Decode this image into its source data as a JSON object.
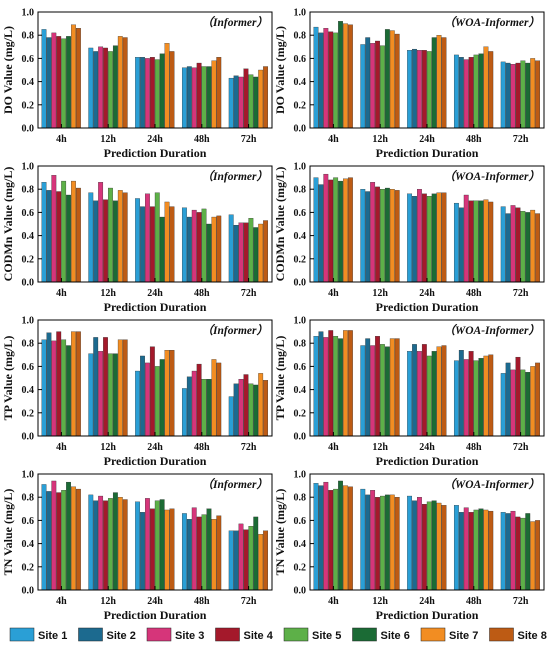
{
  "legend": {
    "sites": [
      "Site 1",
      "Site 2",
      "Site 3",
      "Site 4",
      "Site 5",
      "Site 6",
      "Site 7",
      "Site 8"
    ],
    "colors": [
      "#2a9fd6",
      "#1c6a8f",
      "#d6357a",
      "#a4192b",
      "#5db048",
      "#1b6b35",
      "#f28d22",
      "#bd5b14"
    ]
  },
  "chart_data": [
    {
      "type": "bar",
      "title": "（Informer）",
      "xlabel": "Prediction Duration",
      "ylabel": "DO Value (mg/L)",
      "categories": [
        "4h",
        "12h",
        "24h",
        "48h",
        "72h"
      ],
      "ylim": [
        0,
        1.0
      ],
      "yticks": [
        "0.0",
        "0.2",
        "0.4",
        "0.6",
        "0.8",
        "1.0"
      ],
      "series": [
        {
          "name": "Site 1",
          "values": [
            0.85,
            0.69,
            0.61,
            0.52,
            0.43
          ]
        },
        {
          "name": "Site 2",
          "values": [
            0.78,
            0.66,
            0.61,
            0.53,
            0.45
          ]
        },
        {
          "name": "Site 3",
          "values": [
            0.82,
            0.7,
            0.6,
            0.52,
            0.44
          ]
        },
        {
          "name": "Site 4",
          "values": [
            0.79,
            0.69,
            0.61,
            0.56,
            0.51
          ]
        },
        {
          "name": "Site 5",
          "values": [
            0.77,
            0.66,
            0.59,
            0.53,
            0.46
          ]
        },
        {
          "name": "Site 6",
          "values": [
            0.79,
            0.71,
            0.64,
            0.53,
            0.44
          ]
        },
        {
          "name": "Site 7",
          "values": [
            0.89,
            0.79,
            0.73,
            0.58,
            0.5
          ]
        },
        {
          "name": "Site 8",
          "values": [
            0.86,
            0.78,
            0.66,
            0.61,
            0.53
          ]
        }
      ]
    },
    {
      "type": "bar",
      "title": "（WOA-Informer）",
      "xlabel": "Prediction Duration",
      "ylabel": "DO Value (mg/L)",
      "categories": [
        "4h",
        "12h",
        "24h",
        "48h",
        "72h"
      ],
      "ylim": [
        0,
        1.0
      ],
      "yticks": [
        "0.0",
        "0.2",
        "0.4",
        "0.6",
        "0.8",
        "1.0"
      ],
      "series": [
        {
          "name": "Site 1",
          "values": [
            0.87,
            0.72,
            0.67,
            0.63,
            0.57
          ]
        },
        {
          "name": "Site 2",
          "values": [
            0.82,
            0.78,
            0.68,
            0.61,
            0.56
          ]
        },
        {
          "name": "Site 3",
          "values": [
            0.86,
            0.73,
            0.67,
            0.59,
            0.55
          ]
        },
        {
          "name": "Site 4",
          "values": [
            0.83,
            0.75,
            0.67,
            0.61,
            0.56
          ]
        },
        {
          "name": "Site 5",
          "values": [
            0.82,
            0.71,
            0.66,
            0.63,
            0.58
          ]
        },
        {
          "name": "Site 6",
          "values": [
            0.92,
            0.85,
            0.78,
            0.64,
            0.56
          ]
        },
        {
          "name": "Site 7",
          "values": [
            0.9,
            0.84,
            0.8,
            0.7,
            0.6
          ]
        },
        {
          "name": "Site 8",
          "values": [
            0.89,
            0.81,
            0.78,
            0.66,
            0.58
          ]
        }
      ]
    },
    {
      "type": "bar",
      "title": "（Informer）",
      "xlabel": "Prediction Duration",
      "ylabel": "CODMn Value (mg/L)",
      "categories": [
        "4h",
        "12h",
        "24h",
        "48h",
        "72h"
      ],
      "ylim": [
        0,
        1.0
      ],
      "yticks": [
        "0.0",
        "0.2",
        "0.4",
        "0.6",
        "0.8",
        "1.0"
      ],
      "series": [
        {
          "name": "Site 1",
          "values": [
            0.86,
            0.77,
            0.72,
            0.64,
            0.58
          ]
        },
        {
          "name": "Site 2",
          "values": [
            0.79,
            0.7,
            0.65,
            0.56,
            0.49
          ]
        },
        {
          "name": "Site 3",
          "values": [
            0.92,
            0.86,
            0.76,
            0.62,
            0.51
          ]
        },
        {
          "name": "Site 4",
          "values": [
            0.78,
            0.71,
            0.65,
            0.6,
            0.51
          ]
        },
        {
          "name": "Site 5",
          "values": [
            0.87,
            0.81,
            0.77,
            0.63,
            0.55
          ]
        },
        {
          "name": "Site 6",
          "values": [
            0.75,
            0.7,
            0.56,
            0.5,
            0.47
          ]
        },
        {
          "name": "Site 7",
          "values": [
            0.87,
            0.79,
            0.69,
            0.56,
            0.5
          ]
        },
        {
          "name": "Site 8",
          "values": [
            0.81,
            0.77,
            0.65,
            0.57,
            0.53
          ]
        }
      ]
    },
    {
      "type": "bar",
      "title": "（WOA-Informer）",
      "xlabel": "Prediction Duration",
      "ylabel": "CODMn Value (mg/L)",
      "categories": [
        "4h",
        "12h",
        "24h",
        "48h",
        "72h"
      ],
      "ylim": [
        0,
        1.0
      ],
      "yticks": [
        "0.0",
        "0.2",
        "0.4",
        "0.6",
        "0.8",
        "1.0"
      ],
      "series": [
        {
          "name": "Site 1",
          "values": [
            0.9,
            0.8,
            0.76,
            0.68,
            0.65
          ]
        },
        {
          "name": "Site 2",
          "values": [
            0.84,
            0.78,
            0.74,
            0.64,
            0.59
          ]
        },
        {
          "name": "Site 3",
          "values": [
            0.93,
            0.86,
            0.8,
            0.75,
            0.66
          ]
        },
        {
          "name": "Site 4",
          "values": [
            0.88,
            0.82,
            0.76,
            0.7,
            0.64
          ]
        },
        {
          "name": "Site 5",
          "values": [
            0.9,
            0.8,
            0.74,
            0.7,
            0.61
          ]
        },
        {
          "name": "Site 6",
          "values": [
            0.87,
            0.81,
            0.76,
            0.7,
            0.6
          ]
        },
        {
          "name": "Site 7",
          "values": [
            0.89,
            0.8,
            0.77,
            0.71,
            0.62
          ]
        },
        {
          "name": "Site 8",
          "values": [
            0.9,
            0.79,
            0.77,
            0.69,
            0.59
          ]
        }
      ]
    },
    {
      "type": "bar",
      "title": "（Informer）",
      "xlabel": "Prediction Duration",
      "ylabel": "TP Value (mg/L)",
      "categories": [
        "4h",
        "12h",
        "24h",
        "48h",
        "72h"
      ],
      "ylim": [
        0,
        1.0
      ],
      "yticks": [
        "0.0",
        "0.2",
        "0.4",
        "0.6",
        "0.8",
        "1.0"
      ],
      "series": [
        {
          "name": "Site 1",
          "values": [
            0.83,
            0.71,
            0.56,
            0.41,
            0.34
          ]
        },
        {
          "name": "Site 2",
          "values": [
            0.89,
            0.85,
            0.69,
            0.51,
            0.45
          ]
        },
        {
          "name": "Site 3",
          "values": [
            0.82,
            0.73,
            0.63,
            0.56,
            0.49
          ]
        },
        {
          "name": "Site 4",
          "values": [
            0.9,
            0.85,
            0.77,
            0.62,
            0.53
          ]
        },
        {
          "name": "Site 5",
          "values": [
            0.83,
            0.71,
            0.6,
            0.49,
            0.45
          ]
        },
        {
          "name": "Site 6",
          "values": [
            0.78,
            0.71,
            0.66,
            0.49,
            0.44
          ]
        },
        {
          "name": "Site 7",
          "values": [
            0.9,
            0.83,
            0.74,
            0.66,
            0.54
          ]
        },
        {
          "name": "Site 8",
          "values": [
            0.9,
            0.83,
            0.74,
            0.63,
            0.48
          ]
        }
      ]
    },
    {
      "type": "bar",
      "title": "（WOA-Informer）",
      "xlabel": "Prediction Duration",
      "ylabel": "TP Value (mg/L)",
      "categories": [
        "4h",
        "12h",
        "24h",
        "48h",
        "72h"
      ],
      "ylim": [
        0,
        1.0
      ],
      "yticks": [
        "0.0",
        "0.2",
        "0.4",
        "0.6",
        "0.8",
        "1.0"
      ],
      "series": [
        {
          "name": "Site 1",
          "values": [
            0.86,
            0.78,
            0.73,
            0.65,
            0.54
          ]
        },
        {
          "name": "Site 2",
          "values": [
            0.9,
            0.84,
            0.79,
            0.74,
            0.63
          ]
        },
        {
          "name": "Site 3",
          "values": [
            0.85,
            0.78,
            0.73,
            0.66,
            0.57
          ]
        },
        {
          "name": "Site 4",
          "values": [
            0.91,
            0.86,
            0.79,
            0.73,
            0.68
          ]
        },
        {
          "name": "Site 5",
          "values": [
            0.86,
            0.79,
            0.69,
            0.65,
            0.57
          ]
        },
        {
          "name": "Site 6",
          "values": [
            0.84,
            0.77,
            0.73,
            0.67,
            0.55
          ]
        },
        {
          "name": "Site 7",
          "values": [
            0.91,
            0.84,
            0.77,
            0.69,
            0.6
          ]
        },
        {
          "name": "Site 8",
          "values": [
            0.91,
            0.84,
            0.78,
            0.7,
            0.63
          ]
        }
      ]
    },
    {
      "type": "bar",
      "title": "（Informer）",
      "xlabel": "Prediction Duration",
      "ylabel": "TN Value (mg/L)",
      "categories": [
        "4h",
        "12h",
        "24h",
        "48h",
        "72h"
      ],
      "ylim": [
        0,
        1.0
      ],
      "yticks": [
        "0.0",
        "0.2",
        "0.4",
        "0.6",
        "0.8",
        "1.0"
      ],
      "series": [
        {
          "name": "Site 1",
          "values": [
            0.91,
            0.82,
            0.76,
            0.66,
            0.51
          ]
        },
        {
          "name": "Site 2",
          "values": [
            0.85,
            0.77,
            0.67,
            0.61,
            0.51
          ]
        },
        {
          "name": "Site 3",
          "values": [
            0.94,
            0.81,
            0.79,
            0.71,
            0.57
          ]
        },
        {
          "name": "Site 4",
          "values": [
            0.84,
            0.77,
            0.7,
            0.63,
            0.52
          ]
        },
        {
          "name": "Site 5",
          "values": [
            0.86,
            0.79,
            0.77,
            0.65,
            0.55
          ]
        },
        {
          "name": "Site 6",
          "values": [
            0.93,
            0.84,
            0.78,
            0.7,
            0.63
          ]
        },
        {
          "name": "Site 7",
          "values": [
            0.89,
            0.8,
            0.69,
            0.61,
            0.48
          ]
        },
        {
          "name": "Site 8",
          "values": [
            0.87,
            0.78,
            0.7,
            0.64,
            0.51
          ]
        }
      ]
    },
    {
      "type": "bar",
      "title": "（WOA-Informer）",
      "xlabel": "Prediction Duration",
      "ylabel": "TN Value (mg/L)",
      "categories": [
        "4h",
        "12h",
        "24h",
        "48h",
        "72h"
      ],
      "ylim": [
        0,
        1.0
      ],
      "yticks": [
        "0.0",
        "0.2",
        "0.4",
        "0.6",
        "0.8",
        "1.0"
      ],
      "series": [
        {
          "name": "Site 1",
          "values": [
            0.92,
            0.87,
            0.81,
            0.73,
            0.67
          ]
        },
        {
          "name": "Site 2",
          "values": [
            0.9,
            0.82,
            0.77,
            0.67,
            0.66
          ]
        },
        {
          "name": "Site 3",
          "values": [
            0.93,
            0.86,
            0.8,
            0.71,
            0.68
          ]
        },
        {
          "name": "Site 4",
          "values": [
            0.86,
            0.8,
            0.74,
            0.67,
            0.63
          ]
        },
        {
          "name": "Site 5",
          "values": [
            0.87,
            0.81,
            0.76,
            0.69,
            0.62
          ]
        },
        {
          "name": "Site 6",
          "values": [
            0.94,
            0.82,
            0.77,
            0.7,
            0.66
          ]
        },
        {
          "name": "Site 7",
          "values": [
            0.9,
            0.82,
            0.75,
            0.69,
            0.59
          ]
        },
        {
          "name": "Site 8",
          "values": [
            0.89,
            0.8,
            0.73,
            0.68,
            0.6
          ]
        }
      ]
    }
  ]
}
